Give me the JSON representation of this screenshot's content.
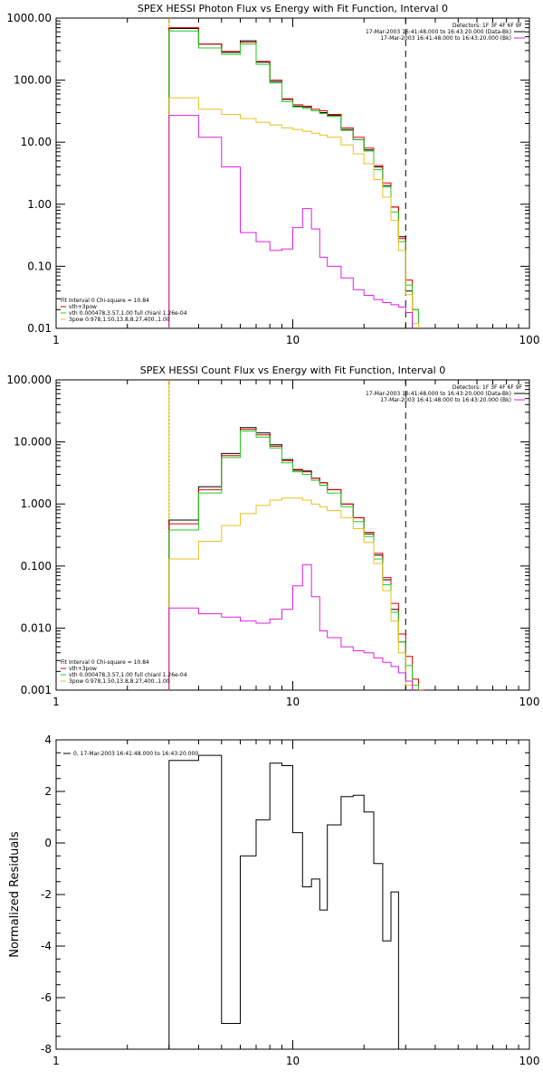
{
  "chart_data": [
    {
      "type": "line",
      "title": "SPEX HESSI Photon Flux vs Energy with Fit Function, Interval 0",
      "xlabel": "",
      "ylabel": "",
      "xscale": "log",
      "yscale": "log",
      "xlim": [
        1,
        100
      ],
      "ylim": [
        0.01,
        1000
      ],
      "x_ticks": [
        1,
        10,
        100
      ],
      "x_tick_labels": [
        "1",
        "10",
        "100"
      ],
      "y_ticks": [
        0.01,
        0.1,
        1,
        10,
        100,
        1000
      ],
      "y_tick_labels": [
        "0.01",
        "0.10",
        "1.00",
        "10.00",
        "100.00",
        "1000.00"
      ],
      "grid": false,
      "vlines": [
        {
          "x": 3,
          "style": "dotted",
          "color": "#000000"
        },
        {
          "x": 3,
          "style": "solid",
          "color": "#e8c020"
        },
        {
          "x": 30,
          "style": "dashed",
          "color": "#000000"
        }
      ],
      "legend_top_right": [
        {
          "label": "Detectors: 1F 3F 4F 6F 9F",
          "color": ""
        },
        {
          "label": "17-Mar-2003 16:41:48.000 to 16:43:20.000 (Data-Bk)",
          "color": "#000000"
        },
        {
          "label": "17-Mar-2003 16:41:48.000 to 16:43:20.000 (Bk)",
          "color": "#dd22dd"
        }
      ],
      "legend_bottom_left": [
        {
          "label": "Fit Interval 0   Chi-square = 10.84",
          "color": ""
        },
        {
          "label": "vth+3pow",
          "color": "#dd0000"
        },
        {
          "label": "vth 0.000478,3.57,1.00   full chianl 1.26e-04",
          "color": "#22cc22"
        },
        {
          "label": "3pow 0.978,1.50,13.8,8.27,400.,1.00",
          "color": "#e8c020"
        }
      ],
      "edges": [
        3,
        4,
        5,
        6,
        7,
        8,
        9,
        10,
        11,
        12,
        13,
        14,
        16,
        18,
        20,
        22,
        24,
        26,
        28,
        30,
        32,
        34
      ],
      "series": [
        {
          "color": "#000000",
          "values": [
            680,
            380,
            280,
            430,
            195,
            95,
            49,
            38,
            37,
            32,
            30,
            27,
            16,
            11,
            7.5,
            4.0,
            2.0,
            0.9,
            0.3,
            0.04,
            null
          ]
        },
        {
          "color": "#dd0000",
          "values": [
            700,
            380,
            290,
            410,
            200,
            100,
            50,
            40,
            38,
            34,
            32,
            28,
            17,
            12,
            8.0,
            4.2,
            2.2,
            0.9,
            0.28,
            0.06,
            0.02
          ]
        },
        {
          "color": "#22cc22",
          "values": [
            620,
            330,
            260,
            380,
            180,
            90,
            45,
            37,
            35,
            32,
            29,
            26,
            15.5,
            11,
            7.2,
            3.6,
            1.9,
            0.75,
            0.25,
            0.05,
            0.02
          ]
        },
        {
          "color": "#e8c020",
          "values": [
            52,
            34,
            28,
            24,
            21,
            19,
            17,
            16,
            15,
            14,
            13,
            12,
            9,
            6.5,
            4.5,
            2.5,
            1.3,
            0.55,
            0.18,
            0.035,
            0.012
          ]
        },
        {
          "color": "#dd22dd",
          "values": [
            27,
            12,
            4.0,
            0.35,
            0.25,
            0.18,
            0.19,
            0.42,
            0.85,
            0.4,
            0.14,
            0.1,
            0.065,
            0.042,
            0.034,
            0.029,
            0.026,
            0.024,
            0.022,
            0.018,
            null
          ]
        }
      ]
    },
    {
      "type": "line",
      "title": "SPEX HESSI Count Flux vs Energy with Fit Function, Interval 0",
      "xlabel": "",
      "ylabel": "",
      "xscale": "log",
      "yscale": "log",
      "xlim": [
        1,
        100
      ],
      "ylim": [
        0.001,
        100
      ],
      "x_ticks": [
        1,
        10,
        100
      ],
      "x_tick_labels": [
        "1",
        "10",
        "100"
      ],
      "y_ticks": [
        0.001,
        0.01,
        0.1,
        1,
        10,
        100
      ],
      "y_tick_labels": [
        "0.001",
        "0.010",
        "0.100",
        "1.000",
        "10.000",
        "100.000"
      ],
      "grid": false,
      "vlines": [
        {
          "x": 3,
          "style": "dotted",
          "color": "#000000"
        },
        {
          "x": 3,
          "style": "solid",
          "color": "#e8c020"
        },
        {
          "x": 30,
          "style": "dashed",
          "color": "#000000"
        }
      ],
      "legend_top_right": [
        {
          "label": "Detectors: 1F 3F 4F 6F 9F",
          "color": ""
        },
        {
          "label": "17-Mar-2003 16:41:48.000 to 16:43:20.000 (Data-Bk)",
          "color": "#000000"
        },
        {
          "label": "17-Mar-2003 16:41:48.000 to 16:43:20.000 (Bk)",
          "color": "#dd22dd"
        }
      ],
      "legend_bottom_left": [
        {
          "label": "Fit Interval 0   Chi-square = 10.84",
          "color": ""
        },
        {
          "label": "vth+3pow",
          "color": "#dd0000"
        },
        {
          "label": "vth 0.000478,3.57,1.00   full chianl 1.26e-04",
          "color": "#22cc22"
        },
        {
          "label": "3pow 0.978,1.50,13.8,8.27,400.,1.00",
          "color": "#e8c020"
        }
      ],
      "edges": [
        3,
        4,
        5,
        6,
        7,
        8,
        9,
        10,
        11,
        12,
        13,
        14,
        16,
        18,
        20,
        22,
        24,
        26,
        28,
        30,
        32,
        34,
        36
      ],
      "series": [
        {
          "color": "#000000",
          "values": [
            0.55,
            1.9,
            6.5,
            17,
            14,
            9.0,
            5.2,
            3.5,
            3.4,
            2.6,
            2.2,
            1.7,
            1.0,
            0.6,
            0.33,
            0.15,
            0.06,
            0.02,
            0.006,
            0.0014,
            null,
            null
          ]
        },
        {
          "color": "#dd0000",
          "values": [
            0.48,
            1.7,
            6.0,
            16,
            13,
            8.5,
            5.0,
            3.6,
            3.3,
            2.6,
            2.2,
            1.7,
            1.0,
            0.6,
            0.35,
            0.16,
            0.065,
            0.025,
            0.008,
            0.0035,
            0.0015,
            0.001
          ]
        },
        {
          "color": "#22cc22",
          "values": [
            0.38,
            1.5,
            5.6,
            15,
            12,
            8.0,
            4.6,
            3.3,
            3.0,
            2.4,
            2.0,
            1.5,
            0.9,
            0.52,
            0.3,
            0.13,
            0.05,
            0.018,
            0.006,
            0.0025,
            0.0012,
            null
          ]
        },
        {
          "color": "#e8c020",
          "values": [
            0.13,
            0.25,
            0.45,
            0.7,
            0.95,
            1.15,
            1.25,
            1.25,
            1.15,
            1.0,
            0.9,
            0.78,
            0.6,
            0.4,
            0.24,
            0.11,
            0.04,
            0.013,
            0.004,
            0.0012,
            null,
            null
          ]
        },
        {
          "color": "#dd22dd",
          "values": [
            0.021,
            0.017,
            0.015,
            0.013,
            0.012,
            0.014,
            0.02,
            0.048,
            0.105,
            0.032,
            0.009,
            0.007,
            0.005,
            0.0043,
            0.004,
            0.0033,
            0.0028,
            0.0024,
            0.0019,
            0.0014,
            null,
            null
          ]
        }
      ]
    },
    {
      "type": "line",
      "title": "",
      "xlabel": "",
      "ylabel": "Normalized Residuals",
      "xscale": "log",
      "yscale": "linear",
      "xlim": [
        1,
        100
      ],
      "ylim": [
        -8,
        4
      ],
      "x_ticks": [
        1,
        10,
        100
      ],
      "x_tick_labels": [
        "1",
        "10",
        "100"
      ],
      "y_ticks": [
        -8,
        -6,
        -4,
        -2,
        0,
        2,
        4
      ],
      "y_tick_labels": [
        "-8",
        "-6",
        "-4",
        "-2",
        "0",
        "2",
        "4"
      ],
      "grid": false,
      "legend_top_left": [
        {
          "label": "0, 17-Mar-2003 16:41:48.000 to 16:43:20.000",
          "color": "#000000"
        }
      ],
      "edges": [
        3,
        4,
        5,
        6,
        7,
        8,
        9,
        10,
        11,
        12,
        13,
        14,
        16,
        18,
        20,
        22,
        24,
        26,
        28,
        30
      ],
      "series": [
        {
          "color": "#000000",
          "values": [
            3.2,
            3.4,
            -7.0,
            -0.5,
            0.9,
            3.1,
            3.0,
            0.4,
            -1.7,
            -1.4,
            -2.6,
            0.7,
            1.8,
            1.85,
            1.2,
            -0.8,
            -3.8,
            -1.9,
            null
          ]
        }
      ]
    }
  ]
}
